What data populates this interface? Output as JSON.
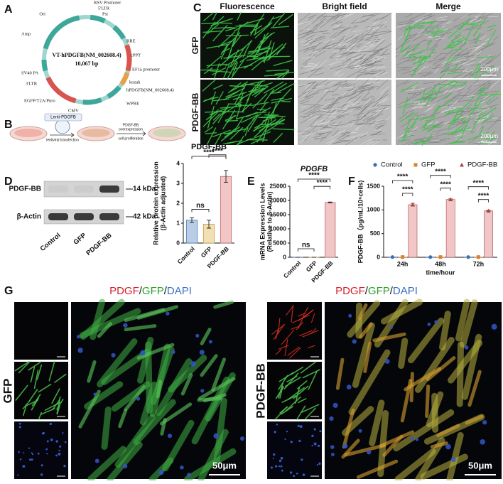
{
  "panels": {
    "labels": [
      "A",
      "B",
      "C",
      "D",
      "E",
      "F",
      "G"
    ]
  },
  "plasmid": {
    "name": "VT-hPDGFB(NM_002608.4)",
    "size": "10,067 bp",
    "features": [
      "Ori",
      "RSV Promoter",
      "5'LTR",
      "Psi",
      "RRE",
      "cPPT",
      "EF1a promoter",
      "kozak",
      "hPDGFB(NM_002608.4)",
      "WPRE",
      "CMV",
      "EGFP/T2A/Puro",
      "3'LTR",
      "SV40 PA",
      "Amp"
    ]
  },
  "schematic": {
    "vector": "Lenti-PDGFB",
    "transfection": "lentiviral transfection",
    "overexpression": [
      "PDGF-BB",
      "overexpression"
    ],
    "proliferation": "cell proliferation"
  },
  "micrographs": {
    "columns": [
      "Fluorescence",
      "Bright field",
      "Merge"
    ],
    "rows": [
      "GFP",
      "PDGF-BB"
    ],
    "scale_bars": [
      "200μm",
      "200μm"
    ]
  },
  "western_blot": {
    "bands": [
      "PDGF-BB",
      "β-Actin"
    ],
    "markers": [
      "—14 kDa",
      "—42 kDa"
    ],
    "lanes": [
      "Control",
      "GFP",
      "PDGF-BB"
    ]
  },
  "immunofluorescence": {
    "stain": [
      "PDGF",
      "/",
      "GFP",
      "/",
      "DAPI"
    ],
    "stain_colors": [
      "#d8202a",
      "#111111",
      "#2ca02c",
      "#111111",
      "#3a6fc4"
    ],
    "groups": [
      {
        "label": "GFP",
        "scale_bar": "50μm"
      },
      {
        "label": "PDGF-BB",
        "scale_bar": "50μm"
      }
    ]
  },
  "chart_data": [
    {
      "type": "bar",
      "title": "PDGF-BB",
      "ylabel": [
        "Relative protein expression",
        "(β-Actin adjusted)"
      ],
      "categories": [
        "Control",
        "GFP",
        "PDGF-BB"
      ],
      "values": [
        1.15,
        0.95,
        3.35
      ],
      "errors": [
        0.12,
        0.2,
        0.3
      ],
      "colors": [
        "#b9cde6",
        "#f3dfb4",
        "#f2c6c6"
      ],
      "edge_colors": [
        "#4a78b4",
        "#c99a4a",
        "#c06868"
      ],
      "ylim": [
        0,
        4
      ],
      "yticks": [
        0,
        1,
        2,
        3,
        4
      ],
      "significance": [
        "ns",
        "****",
        "****"
      ]
    },
    {
      "type": "bar",
      "title": "PDGFB",
      "ylabel": [
        "mRNA Expression Levels",
        "(Relative to β-Actin)"
      ],
      "categories": [
        "Control",
        "GFP",
        "PDGF-BB"
      ],
      "values": [
        1,
        1,
        19300
      ],
      "errors": [
        0,
        0,
        150
      ],
      "colors": [
        "#b9cde6",
        "#f3dfb4",
        "#f2c6c6"
      ],
      "edge_colors": [
        "#4a78b4",
        "#c99a4a",
        "#c06868"
      ],
      "ylim": [
        0,
        25000
      ],
      "yticks": [
        0,
        5000,
        10000,
        15000,
        20000,
        25000
      ],
      "significance": [
        "ns",
        "****",
        "****"
      ]
    },
    {
      "type": "bar",
      "xlabel": "time/hour",
      "ylabel": "PDGF-BB（pg/mL/10⁶cells)",
      "categories": [
        "24h",
        "48h",
        "72h"
      ],
      "series": [
        {
          "name": "Control",
          "color": "#3a6fb0",
          "bar_color": "#b9cde6",
          "marker": "circle",
          "values": [
            5,
            5,
            5
          ]
        },
        {
          "name": "GFP",
          "color": "#d98030",
          "bar_color": "#f3dfb4",
          "marker": "square",
          "values": [
            5,
            5,
            5
          ]
        },
        {
          "name": "PDGF-BB",
          "color": "#a04848",
          "bar_color": "#f2c6c6",
          "marker": "triangle",
          "values": [
            1110,
            1220,
            980
          ],
          "errors": [
            30,
            15,
            12
          ]
        }
      ],
      "ylim": [
        0,
        1500
      ],
      "yticks": [
        0,
        500,
        1000,
        1500
      ],
      "legend": "top",
      "significance": [
        "****",
        "****",
        "****",
        "****",
        "****",
        "****"
      ]
    }
  ]
}
